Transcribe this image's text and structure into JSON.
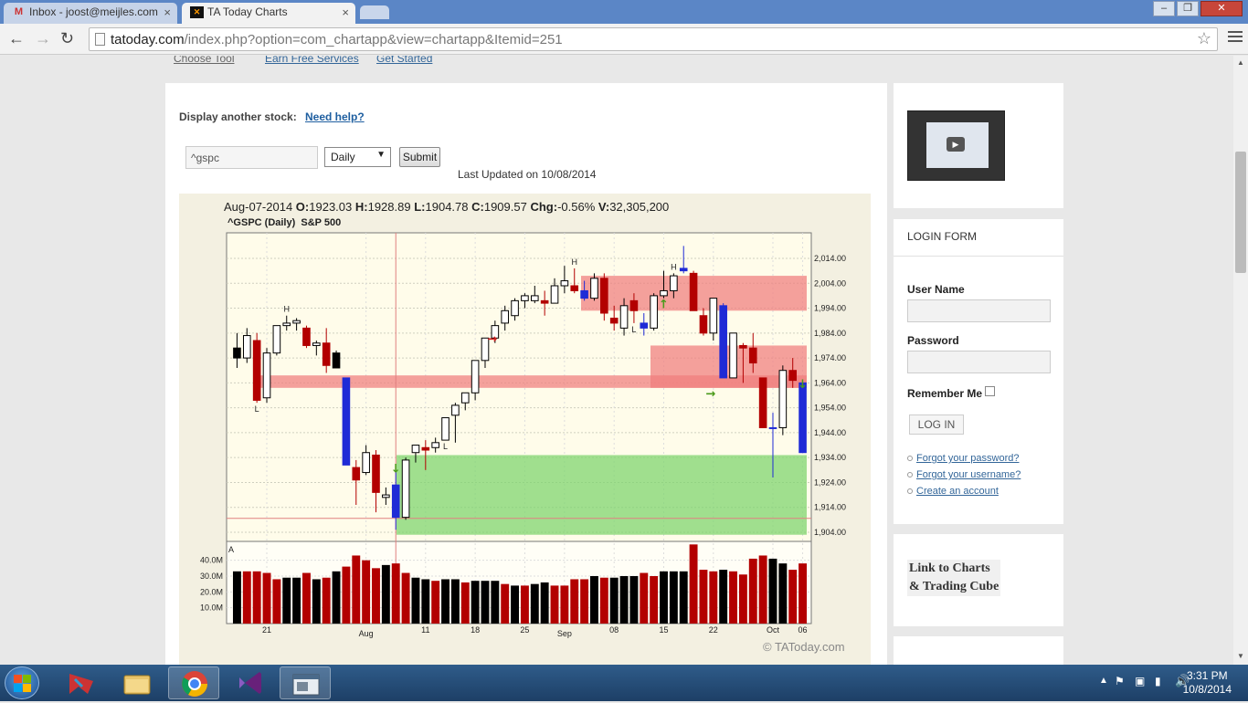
{
  "browser": {
    "tabs": [
      {
        "label": "Inbox - joost@meijles.com",
        "active": false
      },
      {
        "label": "TA Today Charts",
        "active": true
      }
    ],
    "url_domain": "tatoday.com",
    "url_path": "/index.php?option=com_chartapp&view=chartapp&Itemid=251"
  },
  "topnav": {
    "items": [
      "Choose Tool",
      "Earn Free Services",
      "Get Started"
    ]
  },
  "form": {
    "display_label": "Display another stock:",
    "help_link": "Need help?",
    "symbol_value": "^gspc",
    "period_value": "Daily",
    "submit_label": "Submit",
    "last_updated": "Last Updated on 10/08/2014"
  },
  "chart_header": {
    "date": "Aug-07-2014",
    "o_label": "O:",
    "o_val": "1923.03",
    "h_label": "H:",
    "h_val": "1928.89",
    "l_label": "L:",
    "l_val": "1904.78",
    "c_label": "C:",
    "c_val": "1909.57",
    "chg_label": "Chg:",
    "chg_val": "-0.56%",
    "v_label": "V:",
    "v_val": "32,305,200",
    "title": "^GSPC (Daily)  S&P 500",
    "copyright": "© TAToday.com"
  },
  "chart_data": {
    "type": "candlestick",
    "title": "^GSPC (Daily)  S&P 500",
    "price_axis": {
      "ticks": [
        2014,
        2004,
        1994,
        1984,
        1974,
        1964,
        1954,
        1944,
        1934,
        1924,
        1914,
        1904
      ],
      "tick_labels": [
        "2,014.00",
        "2,004.00",
        "1,994.00",
        "1,984.00",
        "1,974.00",
        "1,964.00",
        "1,954.00",
        "1,944.00",
        "1,934.00",
        "1,924.00",
        "1,914.00",
        "1,904.00"
      ]
    },
    "volume_axis": {
      "ticks": [
        40,
        30,
        20,
        10
      ],
      "tick_labels": [
        "40.0M",
        "30.0M",
        "20.0M",
        "10.0M"
      ]
    },
    "x_tick_labels": [
      "21",
      "Aug",
      "11",
      "18",
      "25",
      "Sep",
      "08",
      "15",
      "22",
      "Oct",
      "06"
    ],
    "candles": [
      [
        1978,
        1984,
        1970,
        1974,
        "k"
      ],
      [
        1974,
        1986,
        1972,
        1983,
        "w"
      ],
      [
        1981,
        1984,
        1956,
        1957,
        "r"
      ],
      [
        1958,
        1978,
        1956,
        1976,
        "w"
      ],
      [
        1976,
        1987,
        1975,
        1987,
        "w"
      ],
      [
        1987,
        1991,
        1985,
        1988,
        "w"
      ],
      [
        1988,
        1990,
        1985,
        1989,
        "w"
      ],
      [
        1986,
        1987,
        1978,
        1979,
        "r"
      ],
      [
        1979,
        1981,
        1975,
        1980,
        "w"
      ],
      [
        1980,
        1986,
        1968,
        1971,
        "r"
      ],
      [
        1976,
        1977,
        1970,
        1970,
        "k"
      ],
      [
        1966,
        1966,
        1931,
        1931,
        "b"
      ],
      [
        1930,
        1933,
        1915,
        1925,
        "r"
      ],
      [
        1928,
        1939,
        1927,
        1936,
        "w"
      ],
      [
        1935,
        1937,
        1912,
        1920,
        "r"
      ],
      [
        1918,
        1922,
        1915,
        1919,
        "w"
      ],
      [
        1923,
        1929,
        1905,
        1910,
        "b"
      ],
      [
        1910,
        1934,
        1909,
        1933,
        "w"
      ],
      [
        1936,
        1939,
        1932,
        1939,
        "w"
      ],
      [
        1938,
        1941,
        1929,
        1937,
        "r"
      ],
      [
        1938,
        1942,
        1936,
        1940,
        "w"
      ],
      [
        1941,
        1950,
        1941,
        1950,
        "w"
      ],
      [
        1951,
        1956,
        1940,
        1955,
        "w"
      ],
      [
        1956,
        1960,
        1953,
        1960,
        "w"
      ],
      [
        1960,
        1973,
        1957,
        1973,
        "w"
      ],
      [
        1973,
        1982,
        1970,
        1982,
        "w"
      ],
      [
        1982,
        1989,
        1980,
        1987,
        "w"
      ],
      [
        1988,
        1995,
        1985,
        1993,
        "w"
      ],
      [
        1991,
        1998,
        1989,
        1997,
        "w"
      ],
      [
        1997,
        2000,
        1994,
        1999,
        "w"
      ],
      [
        1997,
        2003,
        1996,
        1999,
        "w"
      ],
      [
        1996,
        2001,
        1991,
        1997,
        "r"
      ],
      [
        1996,
        2006,
        1996,
        2003,
        "w"
      ],
      [
        2003,
        2011,
        2000,
        2005,
        "w"
      ],
      [
        2003,
        2010,
        2000,
        2001,
        "r"
      ],
      [
        2001,
        2005,
        1997,
        1998,
        "b"
      ],
      [
        1998,
        2008,
        1997,
        2006,
        "w"
      ],
      [
        2006,
        2008,
        1989,
        1992,
        "r"
      ],
      [
        1990,
        1995,
        1985,
        1988,
        "r"
      ],
      [
        1986,
        1998,
        1983,
        1995,
        "w"
      ],
      [
        1997,
        2000,
        1988,
        1993,
        "r"
      ],
      [
        1988,
        1992,
        1983,
        1986,
        "b"
      ],
      [
        1986,
        2000,
        1985,
        1999,
        "w"
      ],
      [
        1999,
        2009,
        1998,
        2001,
        "w"
      ],
      [
        2001,
        2008,
        1998,
        2007,
        "w"
      ],
      [
        2009,
        2019,
        2008,
        2010,
        "b"
      ],
      [
        2008,
        2009,
        1993,
        1993,
        "r"
      ],
      [
        1991,
        1994,
        1983,
        1984,
        "r"
      ],
      [
        1984,
        1998,
        1981,
        1998,
        "w"
      ],
      [
        1995,
        1996,
        1966,
        1966,
        "b"
      ],
      [
        1966,
        1984,
        1966,
        1984,
        "w"
      ],
      [
        1979,
        1980,
        1964,
        1978,
        "r"
      ],
      [
        1978,
        1984,
        1968,
        1972,
        "r"
      ],
      [
        1966,
        1966,
        1946,
        1946,
        "r"
      ],
      [
        1946,
        1952,
        1926,
        1946,
        "b"
      ],
      [
        1946,
        1971,
        1943,
        1969,
        "w"
      ],
      [
        1969,
        1974,
        1962,
        1965,
        "r"
      ],
      [
        1964,
        1964,
        1936,
        1936,
        "b"
      ]
    ],
    "volumes": [
      [
        33,
        "k"
      ],
      [
        33,
        "r"
      ],
      [
        33,
        "r"
      ],
      [
        32,
        "r"
      ],
      [
        28,
        "r"
      ],
      [
        29,
        "k"
      ],
      [
        29,
        "k"
      ],
      [
        32,
        "r"
      ],
      [
        28,
        "k"
      ],
      [
        29,
        "r"
      ],
      [
        33,
        "k"
      ],
      [
        36,
        "r"
      ],
      [
        43,
        "r"
      ],
      [
        40,
        "r"
      ],
      [
        35,
        "r"
      ],
      [
        37,
        "k"
      ],
      [
        38,
        "r"
      ],
      [
        32,
        "r"
      ],
      [
        29,
        "k"
      ],
      [
        28,
        "k"
      ],
      [
        27,
        "r"
      ],
      [
        28,
        "k"
      ],
      [
        28,
        "k"
      ],
      [
        26,
        "r"
      ],
      [
        27,
        "k"
      ],
      [
        27,
        "k"
      ],
      [
        27,
        "k"
      ],
      [
        25,
        "r"
      ],
      [
        24,
        "k"
      ],
      [
        24,
        "r"
      ],
      [
        25,
        "k"
      ],
      [
        26,
        "k"
      ],
      [
        24,
        "r"
      ],
      [
        24,
        "r"
      ],
      [
        28,
        "r"
      ],
      [
        28,
        "r"
      ],
      [
        30,
        "k"
      ],
      [
        29,
        "r"
      ],
      [
        29,
        "k"
      ],
      [
        30,
        "k"
      ],
      [
        30,
        "k"
      ],
      [
        32,
        "r"
      ],
      [
        30,
        "r"
      ],
      [
        33,
        "k"
      ],
      [
        33,
        "k"
      ],
      [
        33,
        "k"
      ],
      [
        50,
        "r"
      ],
      [
        34,
        "r"
      ],
      [
        33,
        "r"
      ],
      [
        34,
        "k"
      ],
      [
        33,
        "r"
      ],
      [
        31,
        "r"
      ],
      [
        41,
        "r"
      ],
      [
        43,
        "r"
      ],
      [
        41,
        "k"
      ],
      [
        38,
        "k"
      ],
      [
        34,
        "r"
      ],
      [
        38,
        "r"
      ]
    ],
    "zones": [
      {
        "lo": 1962,
        "hi": 1967,
        "color": "red"
      },
      {
        "lo": 1993,
        "hi": 2007,
        "color": "red"
      },
      {
        "lo": 1962,
        "hi": 1979,
        "color": "red"
      },
      {
        "lo": 1903,
        "hi": 1935,
        "color": "green"
      }
    ],
    "markers": [
      "H",
      "H",
      "H",
      "L",
      "L",
      "L"
    ]
  },
  "sidebar": {
    "login_title": "LOGIN FORM",
    "username_label": "User Name",
    "password_label": "Password",
    "remember_label": "Remember Me",
    "login_button": "LOG IN",
    "links": [
      "Forgot your password?",
      "Forgot your username?",
      "Create an account"
    ],
    "charts_link_line1": "Link to Charts",
    "charts_link_line2": "& Trading Cube"
  },
  "taskbar": {
    "time": "3:31 PM",
    "date": "10/8/2014"
  },
  "colors": {
    "bull": "#ffffff",
    "bear_red": "#b30000",
    "bear_black": "#000000",
    "blue": "#1f2bd6",
    "zone_red": "#f07d7d",
    "zone_green": "#7bd46b",
    "chart_bg": "#fffcea"
  }
}
